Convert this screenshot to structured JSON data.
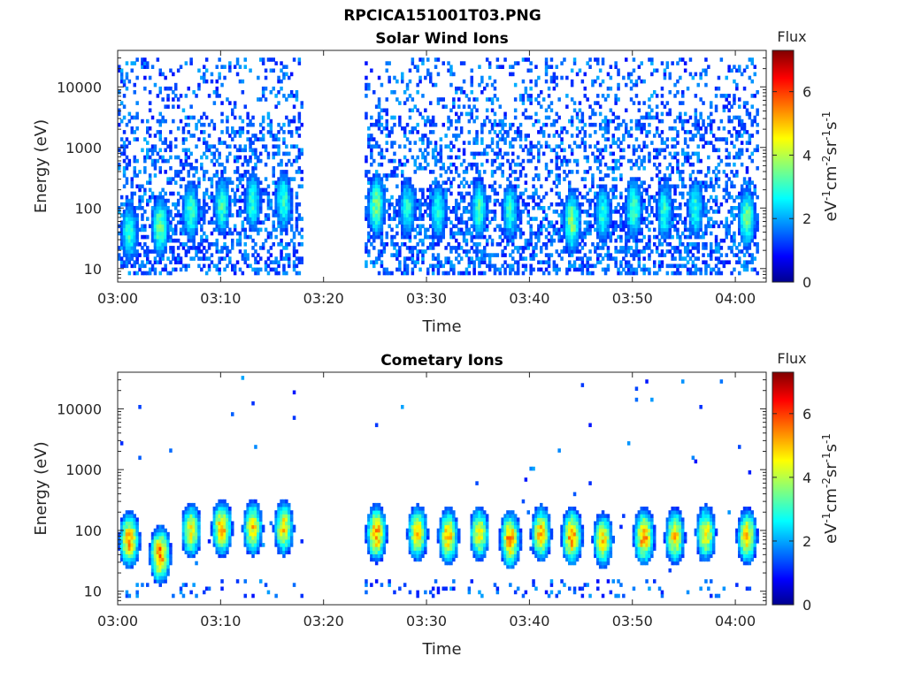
{
  "figure": {
    "title": "RPCICA151001T03.PNG"
  },
  "chart_data": [
    {
      "type": "heatmap",
      "title": "Solar Wind Ions",
      "xlabel": "Time",
      "ylabel": "Energy (eV)",
      "x_ticks": [
        "03:00",
        "03:10",
        "03:20",
        "03:30",
        "03:40",
        "03:50",
        "04:00"
      ],
      "y_ticks": [
        "10",
        "100",
        "1000",
        "10000"
      ],
      "y_scale": "log",
      "ylim": [
        6,
        40000
      ],
      "xlim": [
        "03:00",
        "04:03"
      ],
      "data_gap": [
        "03:18",
        "03:24"
      ],
      "colorbar": {
        "title": "Flux",
        "label": "eV-1cm-2sr-1s-1",
        "ticks": [
          "0",
          "2",
          "4",
          "6"
        ],
        "range": [
          0,
          7.3
        ],
        "colormap": "jet"
      },
      "bursts": [
        {
          "time": "03:01",
          "peak_energy": 40,
          "max_flux": 3.2
        },
        {
          "time": "03:04",
          "peak_energy": 50,
          "max_flux": 3.6
        },
        {
          "time": "03:07",
          "peak_energy": 90,
          "max_flux": 3.3
        },
        {
          "time": "03:10",
          "peak_energy": 110,
          "max_flux": 3.2
        },
        {
          "time": "03:13",
          "peak_energy": 130,
          "max_flux": 3.2
        },
        {
          "time": "03:16",
          "peak_energy": 130,
          "max_flux": 3.2
        },
        {
          "time": "03:25",
          "peak_energy": 110,
          "max_flux": 3.7
        },
        {
          "time": "03:28",
          "peak_energy": 100,
          "max_flux": 3.1
        },
        {
          "time": "03:31",
          "peak_energy": 90,
          "max_flux": 3.1
        },
        {
          "time": "03:35",
          "peak_energy": 100,
          "max_flux": 3.3
        },
        {
          "time": "03:38",
          "peak_energy": 90,
          "max_flux": 3.1
        },
        {
          "time": "03:44",
          "peak_energy": 60,
          "max_flux": 3.8
        },
        {
          "time": "03:47",
          "peak_energy": 80,
          "max_flux": 3.1
        },
        {
          "time": "03:50",
          "peak_energy": 100,
          "max_flux": 3.4
        },
        {
          "time": "03:53",
          "peak_energy": 90,
          "max_flux": 3.1
        },
        {
          "time": "03:56",
          "peak_energy": 100,
          "max_flux": 3.1
        },
        {
          "time": "04:01",
          "peak_energy": 70,
          "max_flux": 3.6
        }
      ]
    },
    {
      "type": "heatmap",
      "title": "Cometary Ions",
      "xlabel": "Time",
      "ylabel": "Energy (eV)",
      "x_ticks": [
        "03:00",
        "03:10",
        "03:20",
        "03:30",
        "03:40",
        "03:50",
        "04:00"
      ],
      "y_ticks": [
        "10",
        "100",
        "1000",
        "10000"
      ],
      "y_scale": "log",
      "ylim": [
        6,
        40000
      ],
      "xlim": [
        "03:00",
        "04:03"
      ],
      "data_gap": [
        "03:18",
        "03:24"
      ],
      "colorbar": {
        "title": "Flux",
        "label": "eV-1cm-2sr-1s-1",
        "ticks": [
          "0",
          "2",
          "4",
          "6"
        ],
        "range": [
          0,
          7.3
        ],
        "colormap": "jet"
      },
      "bursts": [
        {
          "time": "03:01",
          "peak_energy": 70,
          "max_flux": 5.4
        },
        {
          "time": "03:04",
          "peak_energy": 40,
          "max_flux": 5.8
        },
        {
          "time": "03:07",
          "peak_energy": 100,
          "max_flux": 4.8
        },
        {
          "time": "03:10",
          "peak_energy": 110,
          "max_flux": 5.2
        },
        {
          "time": "03:13",
          "peak_energy": 110,
          "max_flux": 4.9
        },
        {
          "time": "03:16",
          "peak_energy": 110,
          "max_flux": 4.9
        },
        {
          "time": "03:25",
          "peak_energy": 90,
          "max_flux": 5.5
        },
        {
          "time": "03:29",
          "peak_energy": 90,
          "max_flux": 5.0
        },
        {
          "time": "03:32",
          "peak_energy": 80,
          "max_flux": 5.2
        },
        {
          "time": "03:35",
          "peak_energy": 90,
          "max_flux": 4.8
        },
        {
          "time": "03:38",
          "peak_energy": 70,
          "max_flux": 5.6
        },
        {
          "time": "03:41",
          "peak_energy": 90,
          "max_flux": 5.1
        },
        {
          "time": "03:44",
          "peak_energy": 80,
          "max_flux": 5.6
        },
        {
          "time": "03:47",
          "peak_energy": 70,
          "max_flux": 4.9
        },
        {
          "time": "03:51",
          "peak_energy": 80,
          "max_flux": 5.6
        },
        {
          "time": "03:54",
          "peak_energy": 80,
          "max_flux": 5.0
        },
        {
          "time": "03:57",
          "peak_energy": 90,
          "max_flux": 4.9
        },
        {
          "time": "04:01",
          "peak_energy": 80,
          "max_flux": 5.1
        }
      ]
    }
  ]
}
